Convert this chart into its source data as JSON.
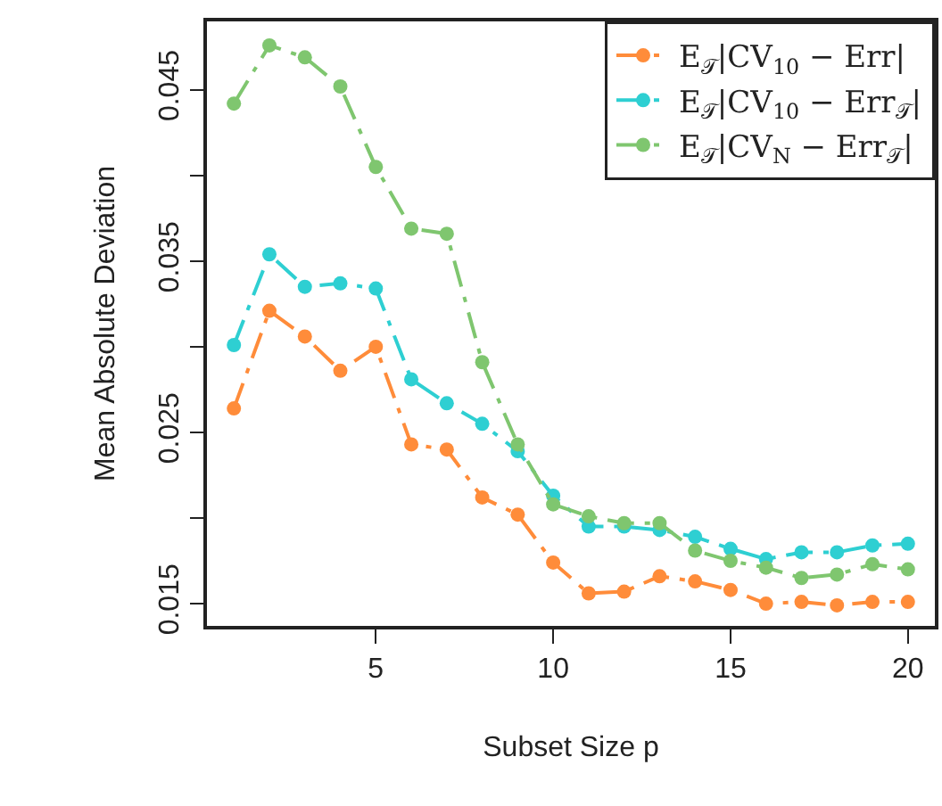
{
  "chart_data": {
    "type": "line",
    "xlabel": "Subset Size p",
    "ylabel": "Mean Absolute Deviation",
    "x": [
      1,
      2,
      3,
      4,
      5,
      6,
      7,
      8,
      9,
      10,
      11,
      12,
      13,
      14,
      15,
      16,
      17,
      18,
      19,
      20
    ],
    "series": [
      {
        "name": "E$_{𝒯}$|CV$_{10}$ − Err|",
        "color": "#ff8c3a",
        "values": [
          0.0264,
          0.0321,
          0.0306,
          0.0286,
          0.03,
          0.0243,
          0.024,
          0.0212,
          0.0202,
          0.0174,
          0.0156,
          0.0157,
          0.0166,
          0.0163,
          0.0158,
          0.015,
          0.0151,
          0.0149,
          0.0151,
          0.0151
        ]
      },
      {
        "name": "E$_{𝒯}$|CV$_{10}$ − Err$_{𝒯}$|",
        "color": "#2ecfd2",
        "values": [
          0.0301,
          0.0354,
          0.0335,
          0.0337,
          0.0334,
          0.0281,
          0.0267,
          0.0255,
          0.0239,
          0.0213,
          0.0195,
          0.0195,
          0.0193,
          0.0189,
          0.0182,
          0.0176,
          0.018,
          0.018,
          0.0184,
          0.0185
        ]
      },
      {
        "name": "E$_{𝒯}$|CV$_{N}$ − Err$_{𝒯}$|",
        "color": "#7fc66f",
        "values": [
          0.0442,
          0.0476,
          0.0469,
          0.0452,
          0.0405,
          0.0369,
          0.0366,
          0.0291,
          0.0243,
          0.0208,
          0.0201,
          0.0197,
          0.0197,
          0.0181,
          0.0175,
          0.0171,
          0.0165,
          0.0167,
          0.0173,
          0.017
        ]
      }
    ],
    "xlim": [
      0.24,
      20.76
    ],
    "ylim": [
      0.0137,
      0.049
    ],
    "xticks": [
      5,
      10,
      15,
      20
    ],
    "yticks": [
      {
        "value": 0.015,
        "label": "0.015"
      },
      {
        "value": 0.02,
        "label": null
      },
      {
        "value": 0.025,
        "label": "0.025"
      },
      {
        "value": 0.03,
        "label": null
      },
      {
        "value": 0.035,
        "label": "0.035"
      },
      {
        "value": 0.04,
        "label": null
      },
      {
        "value": 0.045,
        "label": "0.045"
      }
    ],
    "legend": "top right",
    "marker": "circle",
    "line_style": "dashed"
  }
}
